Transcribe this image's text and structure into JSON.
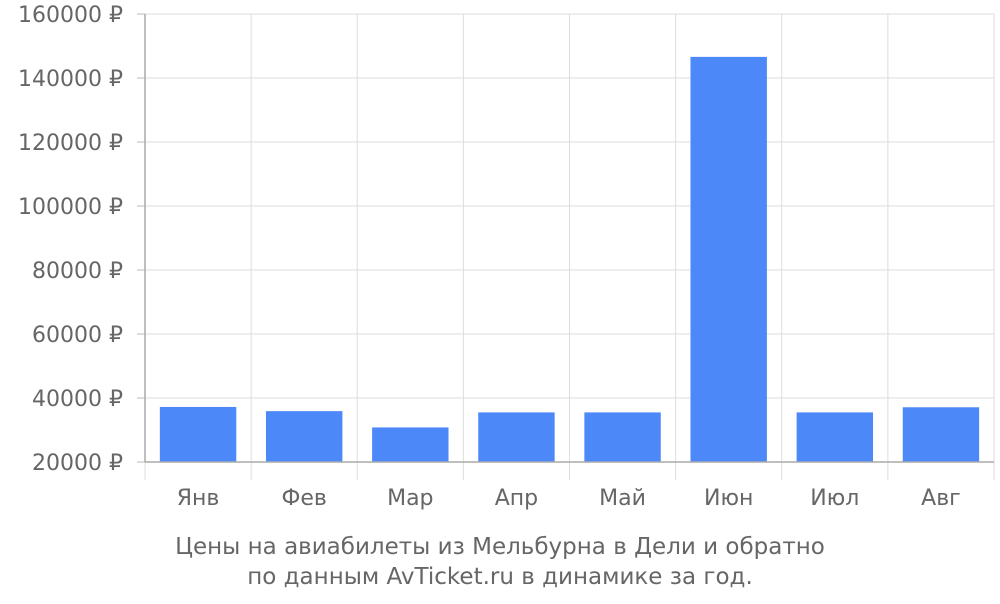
{
  "chart_data": {
    "type": "bar",
    "categories": [
      "Янв",
      "Фев",
      "Мар",
      "Апр",
      "Май",
      "Июн",
      "Июл",
      "Авг"
    ],
    "values": [
      37200,
      35900,
      30800,
      35500,
      35500,
      146600,
      35500,
      37100
    ],
    "ylim": [
      20000,
      160000
    ],
    "yticks": [
      20000,
      40000,
      60000,
      80000,
      100000,
      120000,
      140000,
      160000
    ],
    "ytick_labels": [
      "20000 ₽",
      "40000 ₽",
      "60000 ₽",
      "80000 ₽",
      "100000 ₽",
      "120000 ₽",
      "140000 ₽",
      "160000 ₽"
    ],
    "bar_color": "#4d88f9",
    "grid": true,
    "caption_line1": "Цены на авиабилеты из Мельбурна в Дели и обратно",
    "caption_line2": "по данным AvTicket.ru в динамике за год."
  }
}
